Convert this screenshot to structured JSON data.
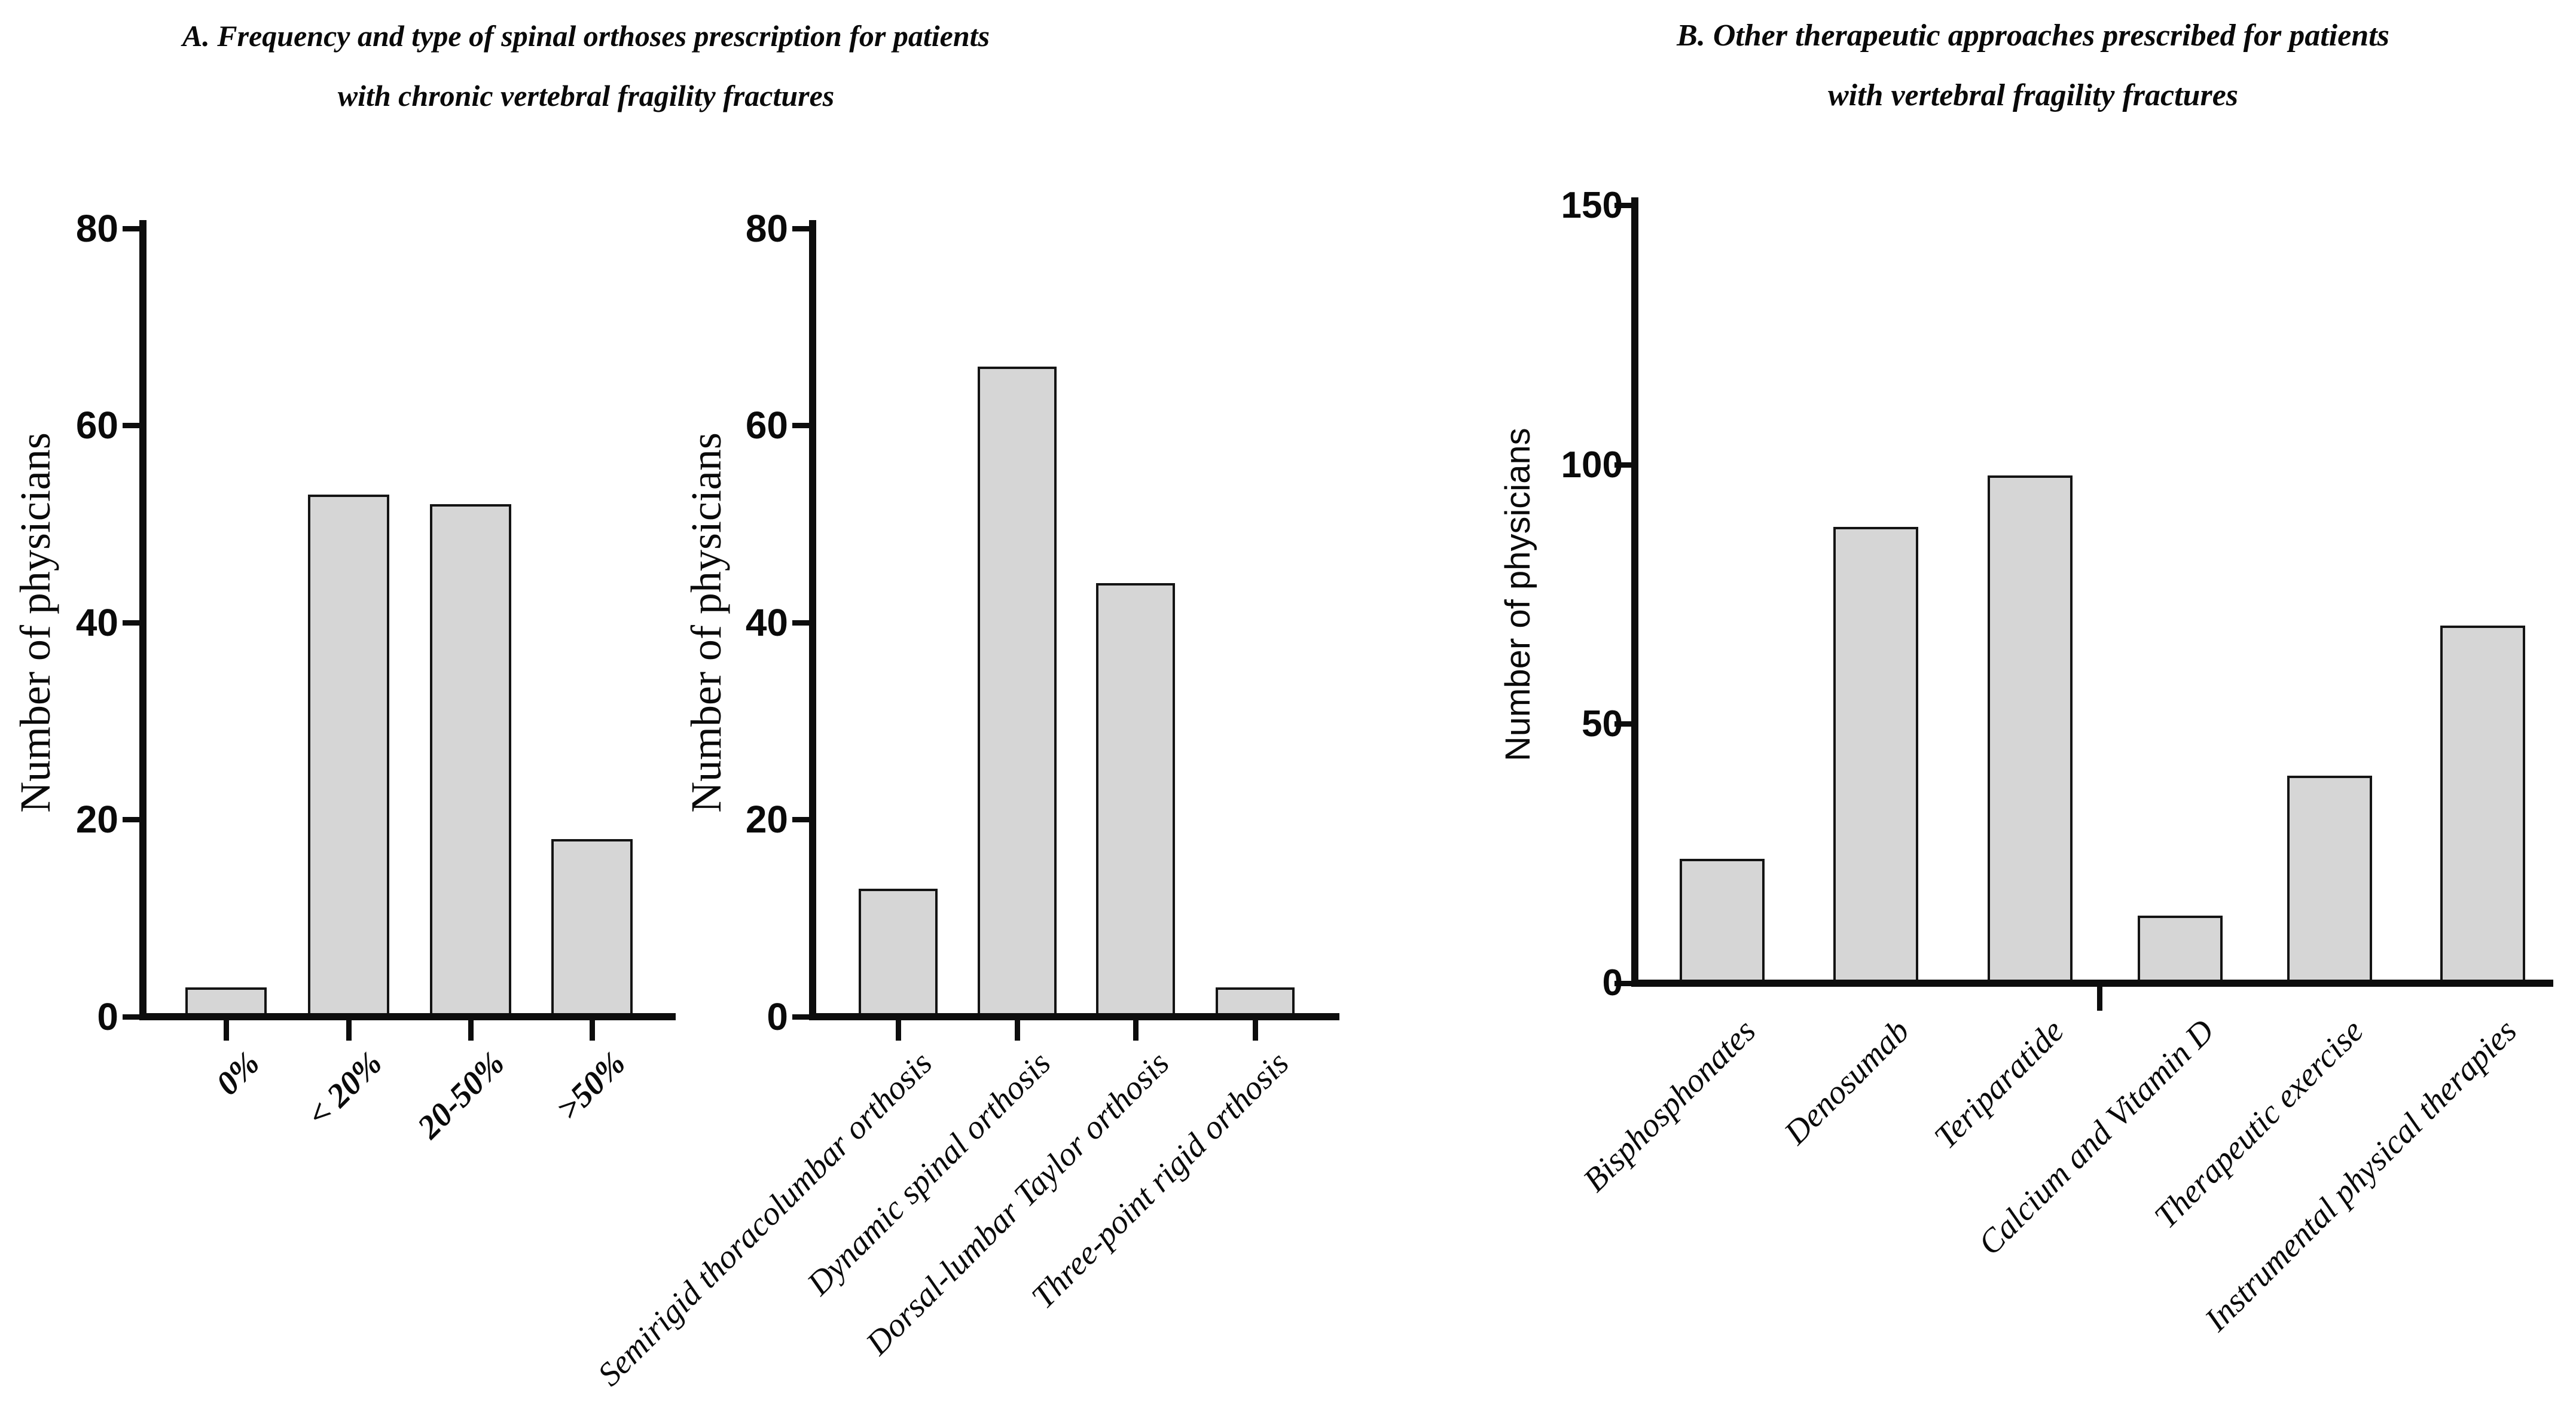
{
  "figure": {
    "panelA": {
      "title_line1": "A. Frequency and type of spinal orthoses prescription for patients",
      "title_line2": "with chronic vertebral fragility fractures"
    },
    "panelB": {
      "title_line1": "B. Other therapeutic approaches prescribed for patients",
      "title_line2": "with vertebral fragility fractures"
    }
  },
  "chart_data": [
    {
      "type": "bar",
      "panel": "A-left",
      "title": "",
      "xlabel": "",
      "ylabel": "Number of physicians",
      "categories": [
        "0%",
        "< 20%",
        "20-50%",
        ">50%"
      ],
      "values": [
        3,
        53,
        52,
        18
      ],
      "ylim": [
        0,
        80
      ],
      "yticks": [
        0,
        20,
        40,
        60,
        80
      ],
      "grid": false,
      "legend": "none",
      "bar_fill": "#d6d6d6",
      "bar_edge": "#141414",
      "axis_color": "#0d0d0d"
    },
    {
      "type": "bar",
      "panel": "A-right",
      "title": "",
      "xlabel": "",
      "ylabel": "Number of physicians",
      "categories": [
        "Semirigid thoracolumbar orthosis",
        "Dynamic spinal orthosis",
        "Dorsal-lumbar Taylor orthosis",
        "Three-point rigid orthosis"
      ],
      "values": [
        13,
        66,
        44,
        3
      ],
      "ylim": [
        0,
        80
      ],
      "yticks": [
        0,
        20,
        40,
        60,
        80
      ],
      "grid": false,
      "legend": "none",
      "bar_fill": "#d6d6d6",
      "bar_edge": "#141414",
      "axis_color": "#0d0d0d"
    },
    {
      "type": "bar",
      "panel": "B",
      "title": "",
      "xlabel": "",
      "ylabel": "Number of physicians",
      "categories": [
        "Bisphosphonates",
        "Denosumab",
        "Teriparatide",
        "Calcium and Vitamin D",
        "Therapeutic exercise",
        "Instrumental physical therapies"
      ],
      "values": [
        24,
        88,
        98,
        13,
        40,
        69
      ],
      "ylim": [
        0,
        150
      ],
      "yticks": [
        0,
        50,
        100,
        150
      ],
      "grid": false,
      "legend": "none",
      "bar_fill": "#d6d6d6",
      "bar_edge": "#141414",
      "axis_color": "#0d0d0d"
    }
  ]
}
